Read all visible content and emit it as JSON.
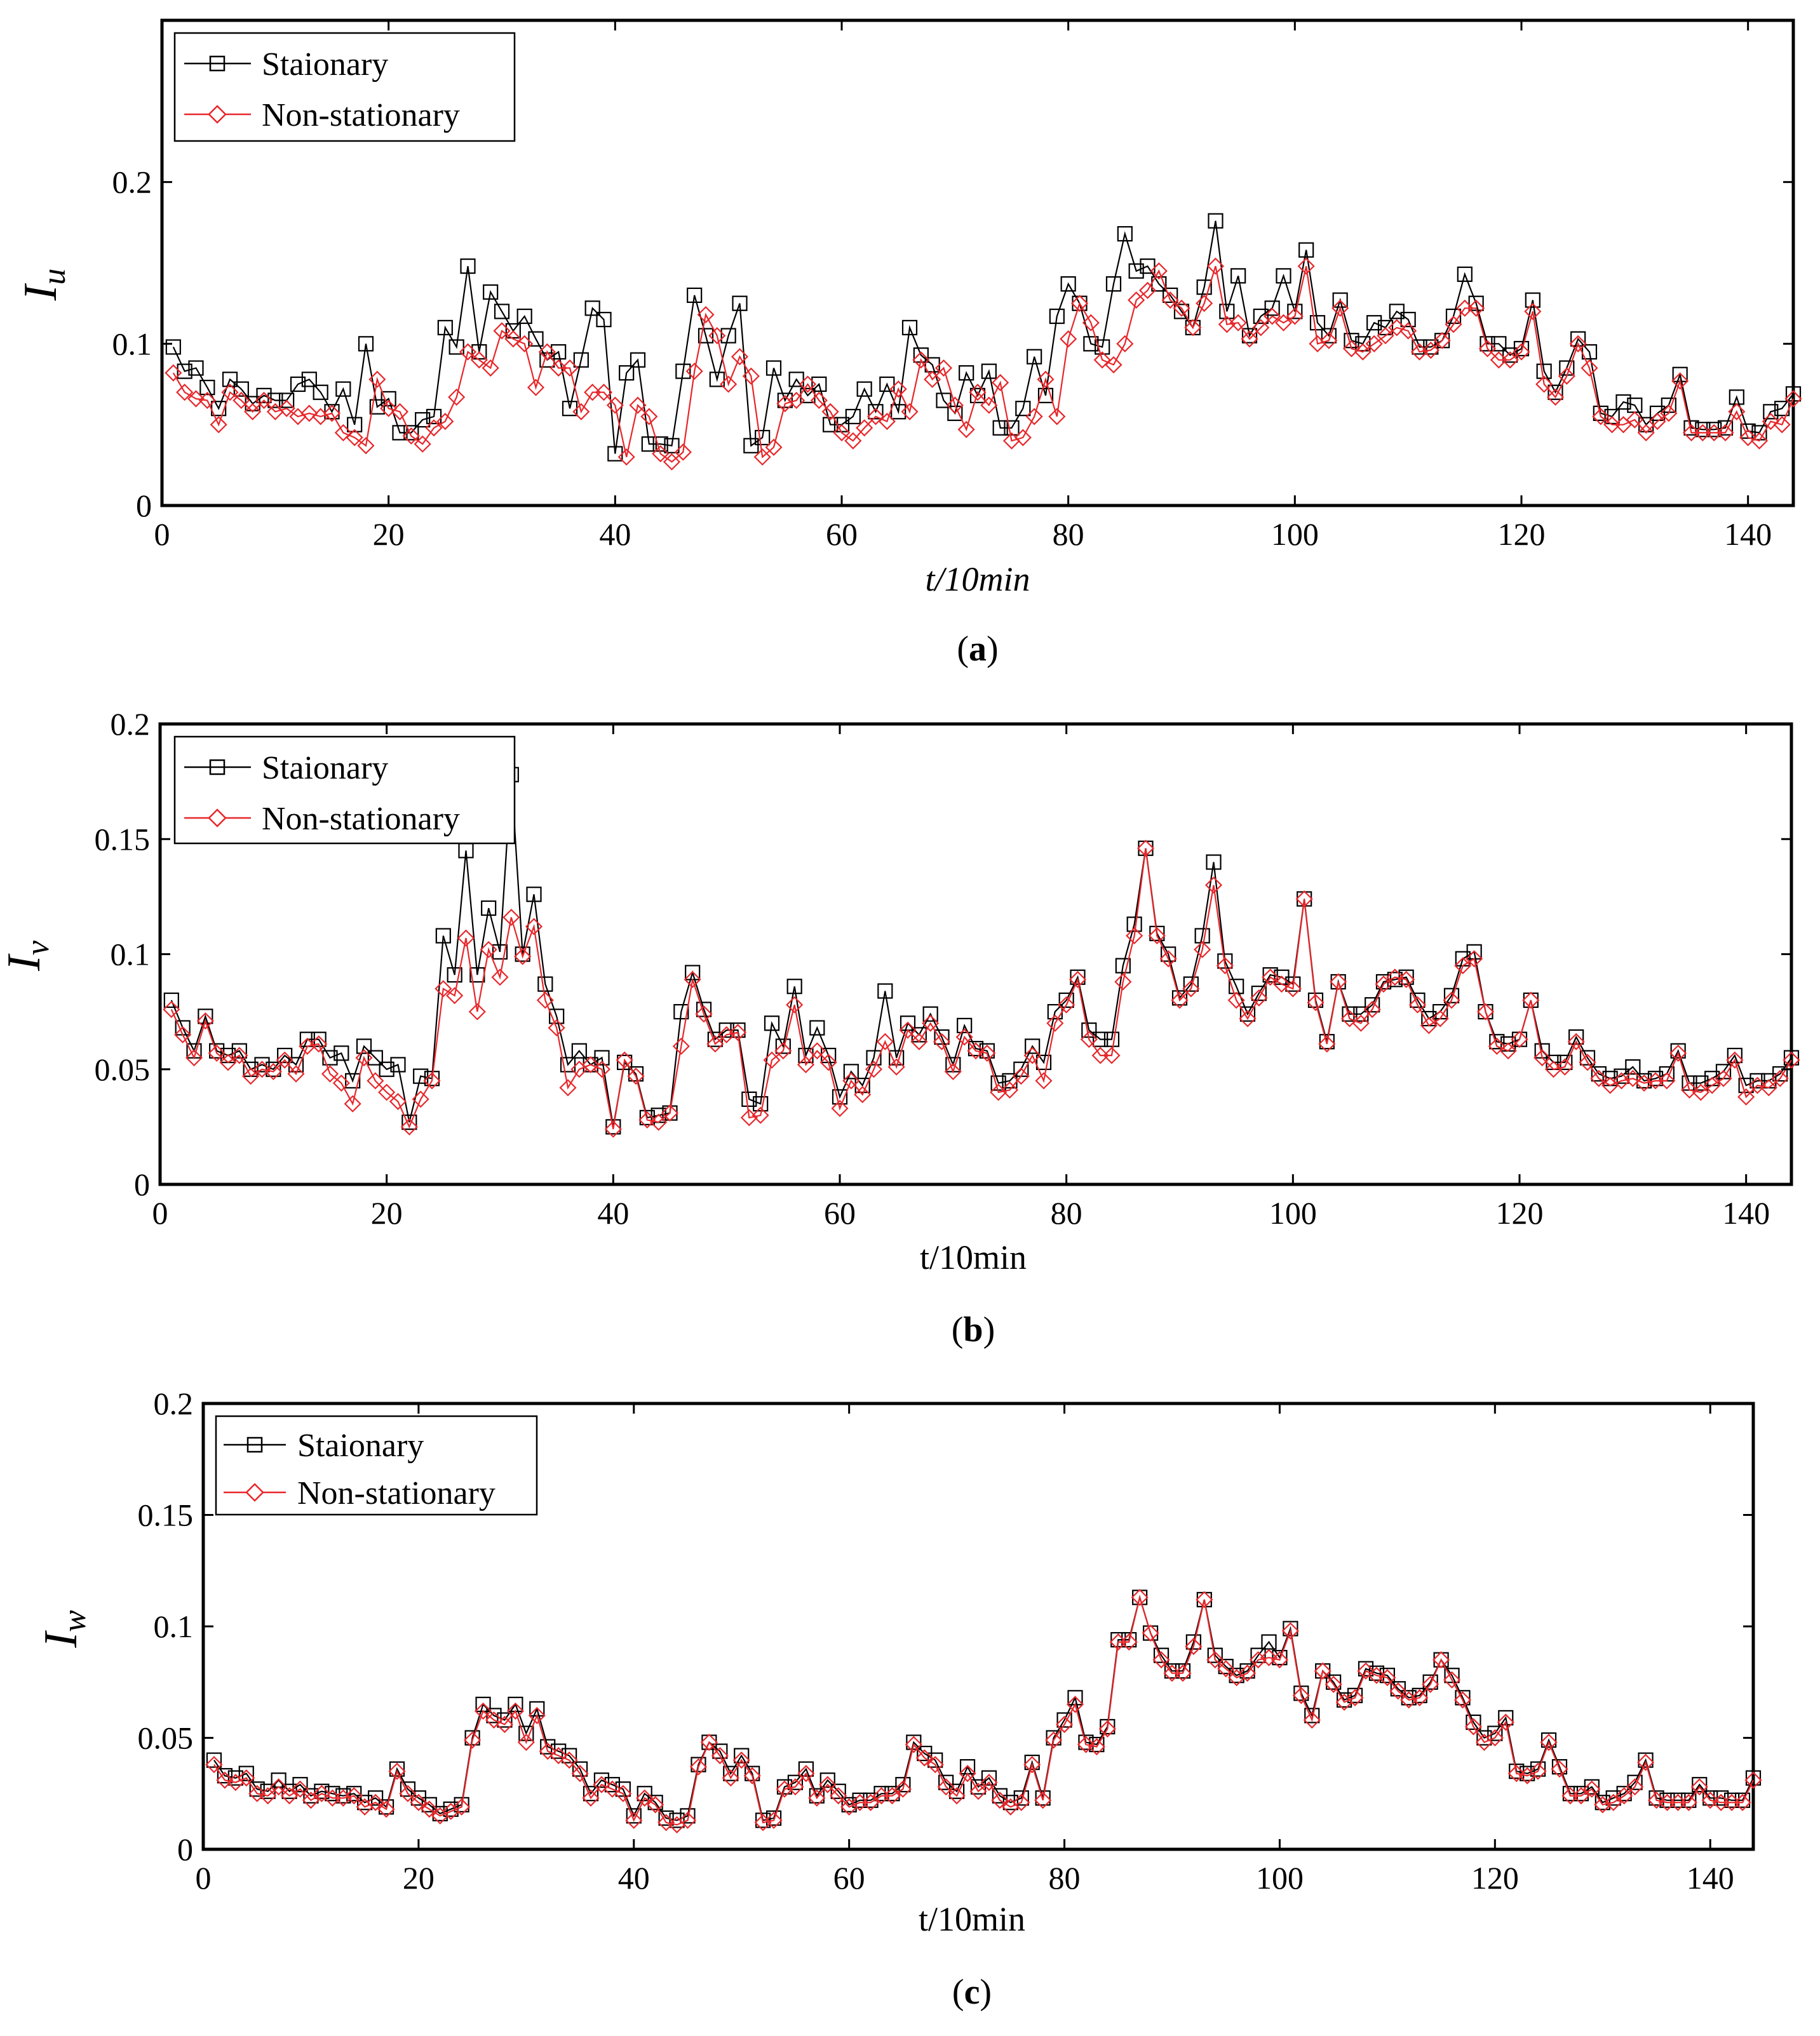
{
  "chart_data": [
    {
      "type": "line",
      "panel": "a",
      "caption_letter": "a",
      "ylabel_main": "I",
      "ylabel_sub": "u",
      "xlabel": "t/10min",
      "xlabel_italic": true,
      "xlim": [
        0,
        144
      ],
      "ylim": [
        0,
        0.3
      ],
      "xticks": [
        0,
        20,
        40,
        60,
        80,
        100,
        120,
        140
      ],
      "yticks": [
        0,
        0.1,
        0.2
      ],
      "ytick_labels": [
        "0",
        "0.1",
        "0.2"
      ],
      "legend": [
        "Staionary",
        "Non-stationary"
      ],
      "legend_position": "top-left",
      "series": [
        {
          "name": "Staionary",
          "color": "#000000",
          "marker": "square",
          "values": [
            0.098,
            0.083,
            0.085,
            0.073,
            0.06,
            0.078,
            0.072,
            0.063,
            0.068,
            0.065,
            0.065,
            0.075,
            0.078,
            0.07,
            0.058,
            0.072,
            0.05,
            0.1,
            0.061,
            0.066,
            0.045,
            0.045,
            0.053,
            0.055,
            0.11,
            0.098,
            0.148,
            0.095,
            0.132,
            0.12,
            0.108,
            0.117,
            0.103,
            0.09,
            0.095,
            0.06,
            0.09,
            0.122,
            0.115,
            0.032,
            0.082,
            0.09,
            0.038,
            0.038,
            0.037,
            0.083,
            0.13,
            0.105,
            0.078,
            0.105,
            0.125,
            0.037,
            0.042,
            0.085,
            0.065,
            0.078,
            0.068,
            0.075,
            0.05,
            0.05,
            0.055,
            0.072,
            0.058,
            0.075,
            0.058,
            0.11,
            0.093,
            0.087,
            0.065,
            0.057,
            0.082,
            0.068,
            0.083,
            0.048,
            0.048,
            0.06,
            0.092,
            0.068,
            0.117,
            0.137,
            0.125,
            0.1,
            0.098,
            0.137,
            0.168,
            0.145,
            0.148,
            0.137,
            0.13,
            0.12,
            0.11,
            0.135,
            0.176,
            0.12,
            0.142,
            0.105,
            0.117,
            0.122,
            0.142,
            0.12,
            0.158,
            0.113,
            0.105,
            0.127,
            0.102,
            0.1,
            0.113,
            0.11,
            0.12,
            0.115,
            0.098,
            0.098,
            0.102,
            0.117,
            0.143,
            0.125,
            0.1,
            0.1,
            0.093,
            0.097,
            0.127,
            0.083,
            0.07,
            0.085,
            0.103,
            0.095,
            0.057,
            0.055,
            0.064,
            0.062,
            0.05,
            0.057,
            0.062,
            0.081,
            0.048,
            0.047,
            0.047,
            0.048,
            0.067,
            0.046,
            0.045,
            0.058,
            0.06,
            0.069
          ]
        },
        {
          "name": "Non-stationary",
          "color": "#e8262a",
          "marker": "diamond",
          "values": [
            0.082,
            0.07,
            0.066,
            0.065,
            0.05,
            0.07,
            0.065,
            0.058,
            0.065,
            0.058,
            0.06,
            0.055,
            0.057,
            0.055,
            0.057,
            0.045,
            0.042,
            0.037,
            0.078,
            0.06,
            0.058,
            0.043,
            0.038,
            0.048,
            0.052,
            0.067,
            0.095,
            0.09,
            0.085,
            0.108,
            0.103,
            0.1,
            0.073,
            0.095,
            0.085,
            0.085,
            0.058,
            0.07,
            0.07,
            0.062,
            0.03,
            0.062,
            0.055,
            0.032,
            0.027,
            0.033,
            0.083,
            0.118,
            0.105,
            0.075,
            0.092,
            0.08,
            0.03,
            0.036,
            0.063,
            0.065,
            0.075,
            0.065,
            0.058,
            0.045,
            0.04,
            0.048,
            0.055,
            0.052,
            0.072,
            0.058,
            0.09,
            0.078,
            0.085,
            0.062,
            0.047,
            0.07,
            0.062,
            0.076,
            0.04,
            0.042,
            0.055,
            0.078,
            0.055,
            0.103,
            0.125,
            0.113,
            0.09,
            0.087,
            0.1,
            0.127,
            0.133,
            0.145,
            0.127,
            0.122,
            0.11,
            0.125,
            0.148,
            0.112,
            0.113,
            0.103,
            0.11,
            0.117,
            0.113,
            0.117,
            0.148,
            0.1,
            0.102,
            0.122,
            0.097,
            0.095,
            0.1,
            0.105,
            0.11,
            0.108,
            0.095,
            0.096,
            0.102,
            0.112,
            0.122,
            0.122,
            0.097,
            0.09,
            0.09,
            0.095,
            0.12,
            0.075,
            0.067,
            0.08,
            0.1,
            0.085,
            0.055,
            0.05,
            0.05,
            0.053,
            0.045,
            0.052,
            0.057,
            0.077,
            0.045,
            0.045,
            0.045,
            0.045,
            0.058,
            0.042,
            0.04,
            0.052,
            0.05,
            0.066
          ]
        }
      ]
    },
    {
      "type": "line",
      "panel": "b",
      "caption_letter": "b",
      "ylabel_main": "I",
      "ylabel_sub": "v",
      "xlabel": "t/10min",
      "xlabel_italic": false,
      "xlim": [
        0,
        144
      ],
      "ylim": [
        0,
        0.2
      ],
      "xticks": [
        0,
        20,
        40,
        60,
        80,
        100,
        120,
        140
      ],
      "yticks": [
        0,
        0.05,
        0.1,
        0.15,
        0.2
      ],
      "ytick_labels": [
        "0",
        "0.05",
        "0.1",
        "0.15",
        "0.2"
      ],
      "legend": [
        "Staionary",
        "Non-stationary"
      ],
      "legend_position": "top-left",
      "series": [
        {
          "name": "Staionary",
          "color": "#000000",
          "marker": "square",
          "values": [
            0.08,
            0.068,
            0.058,
            0.073,
            0.058,
            0.056,
            0.058,
            0.05,
            0.052,
            0.05,
            0.056,
            0.052,
            0.063,
            0.063,
            0.055,
            0.057,
            0.045,
            0.06,
            0.055,
            0.05,
            0.052,
            0.027,
            0.047,
            0.046,
            0.108,
            0.091,
            0.145,
            0.091,
            0.12,
            0.101,
            0.178,
            0.1,
            0.126,
            0.087,
            0.073,
            0.052,
            0.058,
            0.052,
            0.055,
            0.025,
            0.053,
            0.048,
            0.029,
            0.03,
            0.031,
            0.075,
            0.092,
            0.076,
            0.063,
            0.067,
            0.067,
            0.037,
            0.035,
            0.07,
            0.06,
            0.086,
            0.056,
            0.068,
            0.056,
            0.038,
            0.049,
            0.043,
            0.055,
            0.084,
            0.055,
            0.07,
            0.065,
            0.074,
            0.064,
            0.052,
            0.069,
            0.059,
            0.058,
            0.044,
            0.045,
            0.05,
            0.06,
            0.053,
            0.075,
            0.08,
            0.09,
            0.067,
            0.063,
            0.063,
            0.095,
            0.113,
            0.146,
            0.109,
            0.1,
            0.081,
            0.087,
            0.108,
            0.14,
            0.097,
            0.086,
            0.074,
            0.083,
            0.091,
            0.09,
            0.087,
            0.124,
            0.08,
            0.062,
            0.088,
            0.074,
            0.074,
            0.078,
            0.088,
            0.089,
            0.09,
            0.08,
            0.072,
            0.075,
            0.082,
            0.098,
            0.101,
            0.075,
            0.062,
            0.061,
            0.063,
            0.08,
            0.058,
            0.053,
            0.053,
            0.064,
            0.055,
            0.048,
            0.046,
            0.047,
            0.051,
            0.045,
            0.046,
            0.048,
            0.058,
            0.044,
            0.044,
            0.046,
            0.049,
            0.056,
            0.043,
            0.045,
            0.045,
            0.048,
            0.055
          ]
        },
        {
          "name": "Non-stationary",
          "color": "#e8262a",
          "marker": "diamond",
          "values": [
            0.076,
            0.065,
            0.055,
            0.071,
            0.057,
            0.053,
            0.056,
            0.047,
            0.05,
            0.049,
            0.054,
            0.048,
            0.06,
            0.061,
            0.048,
            0.044,
            0.035,
            0.055,
            0.045,
            0.04,
            0.036,
            0.025,
            0.037,
            0.045,
            0.085,
            0.082,
            0.107,
            0.075,
            0.102,
            0.09,
            0.116,
            0.099,
            0.112,
            0.08,
            0.068,
            0.042,
            0.05,
            0.052,
            0.05,
            0.024,
            0.054,
            0.047,
            0.028,
            0.027,
            0.031,
            0.06,
            0.089,
            0.074,
            0.061,
            0.065,
            0.066,
            0.029,
            0.03,
            0.054,
            0.058,
            0.078,
            0.052,
            0.058,
            0.053,
            0.033,
            0.045,
            0.039,
            0.05,
            0.062,
            0.051,
            0.067,
            0.062,
            0.07,
            0.062,
            0.049,
            0.064,
            0.058,
            0.057,
            0.04,
            0.041,
            0.047,
            0.056,
            0.045,
            0.07,
            0.078,
            0.089,
            0.063,
            0.056,
            0.056,
            0.088,
            0.108,
            0.146,
            0.108,
            0.098,
            0.08,
            0.085,
            0.102,
            0.13,
            0.095,
            0.08,
            0.072,
            0.081,
            0.09,
            0.087,
            0.085,
            0.124,
            0.079,
            0.061,
            0.088,
            0.072,
            0.07,
            0.076,
            0.087,
            0.09,
            0.089,
            0.078,
            0.069,
            0.072,
            0.08,
            0.095,
            0.098,
            0.075,
            0.06,
            0.058,
            0.063,
            0.08,
            0.055,
            0.05,
            0.051,
            0.062,
            0.053,
            0.046,
            0.043,
            0.045,
            0.046,
            0.044,
            0.045,
            0.045,
            0.057,
            0.041,
            0.04,
            0.043,
            0.046,
            0.054,
            0.038,
            0.043,
            0.042,
            0.046,
            0.054
          ]
        }
      ]
    },
    {
      "type": "line",
      "panel": "c",
      "caption_letter": "c",
      "ylabel_main": "I",
      "ylabel_sub": "w",
      "xlabel": "t/10min",
      "xlabel_italic": false,
      "xlim": [
        0,
        144
      ],
      "ylim": [
        0,
        0.2
      ],
      "xticks": [
        0,
        20,
        40,
        60,
        80,
        100,
        120,
        140
      ],
      "yticks": [
        0,
        0.05,
        0.1,
        0.15,
        0.2
      ],
      "ytick_labels": [
        "0",
        "0.05",
        "0.1",
        "0.15",
        "0.2"
      ],
      "legend": [
        "Staionary",
        "Non-stationary"
      ],
      "legend_position": "top-left",
      "series": [
        {
          "name": "Staionary",
          "color": "#000000",
          "marker": "square",
          "values": [
            0.04,
            0.033,
            0.032,
            0.034,
            0.027,
            0.026,
            0.031,
            0.026,
            0.029,
            0.024,
            0.026,
            0.025,
            0.024,
            0.025,
            0.021,
            0.023,
            0.019,
            0.036,
            0.027,
            0.023,
            0.02,
            0.016,
            0.018,
            0.02,
            0.05,
            0.065,
            0.06,
            0.058,
            0.065,
            0.052,
            0.063,
            0.046,
            0.044,
            0.042,
            0.036,
            0.025,
            0.031,
            0.029,
            0.027,
            0.015,
            0.025,
            0.021,
            0.014,
            0.013,
            0.015,
            0.038,
            0.048,
            0.044,
            0.034,
            0.042,
            0.034,
            0.013,
            0.014,
            0.028,
            0.03,
            0.036,
            0.024,
            0.031,
            0.026,
            0.02,
            0.022,
            0.022,
            0.025,
            0.025,
            0.029,
            0.048,
            0.043,
            0.04,
            0.03,
            0.026,
            0.037,
            0.028,
            0.032,
            0.024,
            0.021,
            0.023,
            0.039,
            0.023,
            0.05,
            0.058,
            0.068,
            0.048,
            0.047,
            0.055,
            0.094,
            0.094,
            0.113,
            0.097,
            0.087,
            0.08,
            0.08,
            0.093,
            0.112,
            0.087,
            0.082,
            0.078,
            0.08,
            0.087,
            0.093,
            0.086,
            0.099,
            0.07,
            0.06,
            0.08,
            0.075,
            0.067,
            0.069,
            0.081,
            0.079,
            0.078,
            0.072,
            0.068,
            0.069,
            0.075,
            0.085,
            0.078,
            0.068,
            0.057,
            0.05,
            0.052,
            0.059,
            0.035,
            0.034,
            0.036,
            0.049,
            0.037,
            0.025,
            0.025,
            0.028,
            0.021,
            0.023,
            0.025,
            0.03,
            0.04,
            0.023,
            0.022,
            0.022,
            0.022,
            0.029,
            0.023,
            0.023,
            0.022,
            0.022,
            0.032
          ]
        },
        {
          "name": "Non-stationary",
          "color": "#e8262a",
          "marker": "diamond",
          "values": [
            0.038,
            0.031,
            0.03,
            0.032,
            0.025,
            0.024,
            0.028,
            0.024,
            0.027,
            0.022,
            0.025,
            0.023,
            0.023,
            0.024,
            0.019,
            0.021,
            0.018,
            0.035,
            0.025,
            0.021,
            0.018,
            0.015,
            0.017,
            0.019,
            0.049,
            0.062,
            0.058,
            0.056,
            0.062,
            0.048,
            0.06,
            0.044,
            0.042,
            0.04,
            0.034,
            0.023,
            0.029,
            0.027,
            0.025,
            0.013,
            0.023,
            0.02,
            0.012,
            0.011,
            0.013,
            0.037,
            0.048,
            0.042,
            0.032,
            0.04,
            0.033,
            0.012,
            0.013,
            0.027,
            0.028,
            0.034,
            0.023,
            0.029,
            0.024,
            0.019,
            0.021,
            0.021,
            0.024,
            0.024,
            0.027,
            0.047,
            0.041,
            0.038,
            0.028,
            0.024,
            0.034,
            0.026,
            0.03,
            0.022,
            0.019,
            0.021,
            0.038,
            0.022,
            0.049,
            0.056,
            0.065,
            0.047,
            0.046,
            0.054,
            0.093,
            0.093,
            0.113,
            0.097,
            0.085,
            0.079,
            0.079,
            0.091,
            0.112,
            0.085,
            0.081,
            0.077,
            0.079,
            0.085,
            0.086,
            0.085,
            0.098,
            0.069,
            0.058,
            0.08,
            0.074,
            0.066,
            0.068,
            0.08,
            0.078,
            0.077,
            0.071,
            0.067,
            0.068,
            0.074,
            0.085,
            0.076,
            0.067,
            0.055,
            0.048,
            0.05,
            0.057,
            0.034,
            0.033,
            0.035,
            0.048,
            0.036,
            0.024,
            0.024,
            0.027,
            0.02,
            0.021,
            0.024,
            0.028,
            0.039,
            0.022,
            0.021,
            0.021,
            0.021,
            0.028,
            0.022,
            0.021,
            0.021,
            0.021,
            0.031
          ]
        }
      ]
    }
  ]
}
